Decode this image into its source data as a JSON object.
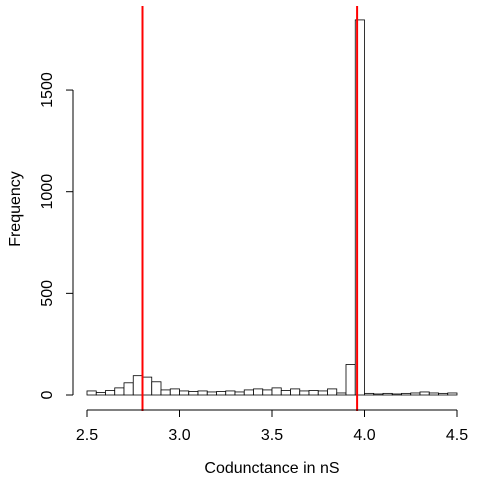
{
  "chart_data": {
    "type": "bar",
    "title": "",
    "xlabel": "Codunctance in nS",
    "ylabel": "Frequency",
    "xlim": [
      2.5,
      4.5
    ],
    "ylim": [
      0,
      1850
    ],
    "bin_width": 0.05,
    "bin_starts": [
      2.5,
      2.55,
      2.6,
      2.65,
      2.7,
      2.75,
      2.8,
      2.85,
      2.9,
      2.95,
      3.0,
      3.05,
      3.1,
      3.15,
      3.2,
      3.25,
      3.3,
      3.35,
      3.4,
      3.45,
      3.5,
      3.55,
      3.6,
      3.65,
      3.7,
      3.75,
      3.8,
      3.85,
      3.9,
      3.95,
      4.0,
      4.05,
      4.1,
      4.15,
      4.2,
      4.25,
      4.3,
      4.35,
      4.4,
      4.45
    ],
    "values": [
      20,
      12,
      22,
      35,
      60,
      95,
      88,
      65,
      25,
      30,
      20,
      17,
      20,
      15,
      17,
      20,
      15,
      25,
      30,
      25,
      35,
      22,
      30,
      20,
      22,
      20,
      30,
      10,
      150,
      1845,
      8,
      5,
      8,
      5,
      8,
      10,
      15,
      10,
      8,
      10
    ],
    "x_ticks": [
      {
        "value": 2.5,
        "label": "2.5"
      },
      {
        "value": 3.0,
        "label": "3.0"
      },
      {
        "value": 3.5,
        "label": "3.5"
      },
      {
        "value": 4.0,
        "label": "4.0"
      },
      {
        "value": 4.5,
        "label": "4.5"
      }
    ],
    "y_ticks": [
      {
        "value": 0,
        "label": "0"
      },
      {
        "value": 500,
        "label": "500"
      },
      {
        "value": 1000,
        "label": "1000"
      },
      {
        "value": 1500,
        "label": "1500"
      }
    ],
    "vlines": [
      {
        "x": 2.8,
        "color": "#ff0000"
      },
      {
        "x": 3.96,
        "color": "#ff0000"
      }
    ],
    "grid": false,
    "legend": "none"
  }
}
